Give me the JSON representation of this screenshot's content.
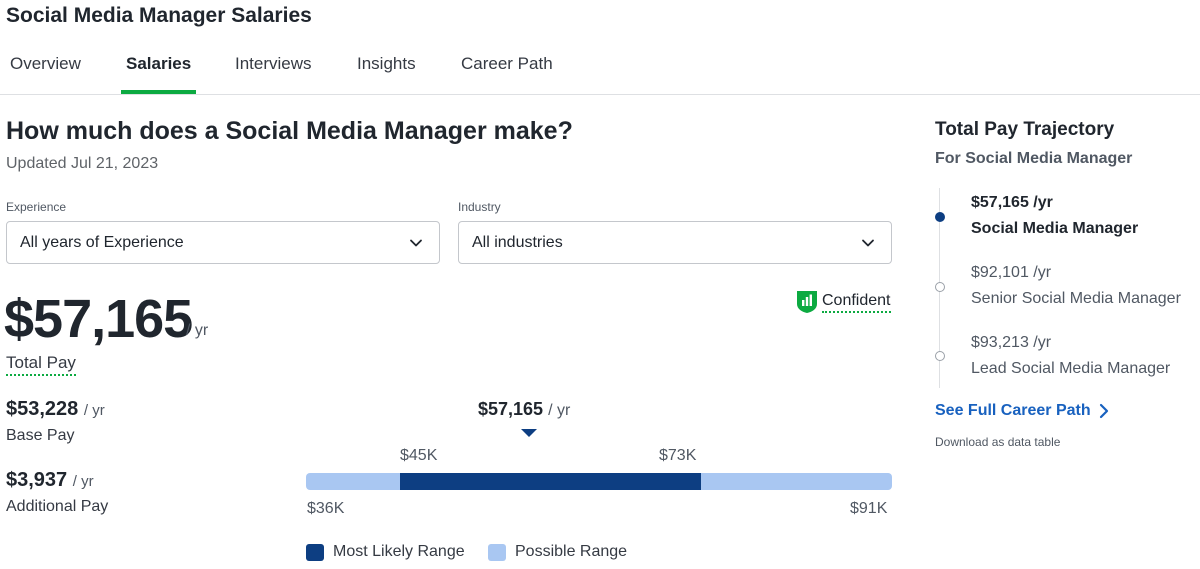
{
  "page": {
    "title": "Social Media Manager Salaries"
  },
  "tabs": [
    {
      "label": "Overview",
      "active": false
    },
    {
      "label": "Salaries",
      "active": true
    },
    {
      "label": "Interviews",
      "active": false
    },
    {
      "label": "Insights",
      "active": false
    },
    {
      "label": "Career Path",
      "active": false
    }
  ],
  "main": {
    "heading": "How much does a Social Media Manager make?",
    "updated": "Updated Jul 21, 2023"
  },
  "filters": {
    "experience": {
      "label": "Experience",
      "value": "All years of Experience"
    },
    "industry": {
      "label": "Industry",
      "value": "All industries"
    }
  },
  "pay": {
    "total": "$57,165",
    "unit": "/ yr",
    "total_label": "Total Pay",
    "confidence": "Confident",
    "base": {
      "amount": "$53,228",
      "unit": "/ yr",
      "label": "Base Pay"
    },
    "additional": {
      "amount": "$3,937",
      "unit": "/ yr",
      "label": "Additional Pay"
    }
  },
  "range": {
    "median": "$57,165",
    "median_unit": "/ yr",
    "likely_low": "$45K",
    "likely_high": "$73K",
    "min": "$36K",
    "max": "$91K",
    "legend_likely": "Most Likely Range",
    "legend_possible": "Possible Range"
  },
  "colors": {
    "accent_green": "#0caa41",
    "likely_range": "#0d3e82",
    "possible_range": "#a9c7f2",
    "link": "#1861bf"
  },
  "trajectory": {
    "title": "Total Pay Trajectory",
    "subtitle": "For Social Media Manager",
    "steps": [
      {
        "pay": "$57,165 /yr",
        "role": "Social Media Manager",
        "current": true
      },
      {
        "pay": "$92,101 /yr",
        "role": "Senior Social Media Manager",
        "current": false
      },
      {
        "pay": "$93,213 /yr",
        "role": "Lead Social Media Manager",
        "current": false
      }
    ],
    "career_link": "See Full Career Path",
    "download_link": "Download as data table"
  },
  "icons": {
    "confidence": "bar-chart-shield-icon",
    "dropdown": "chevron-down-icon",
    "link_arrow": "chevron-right-icon"
  }
}
